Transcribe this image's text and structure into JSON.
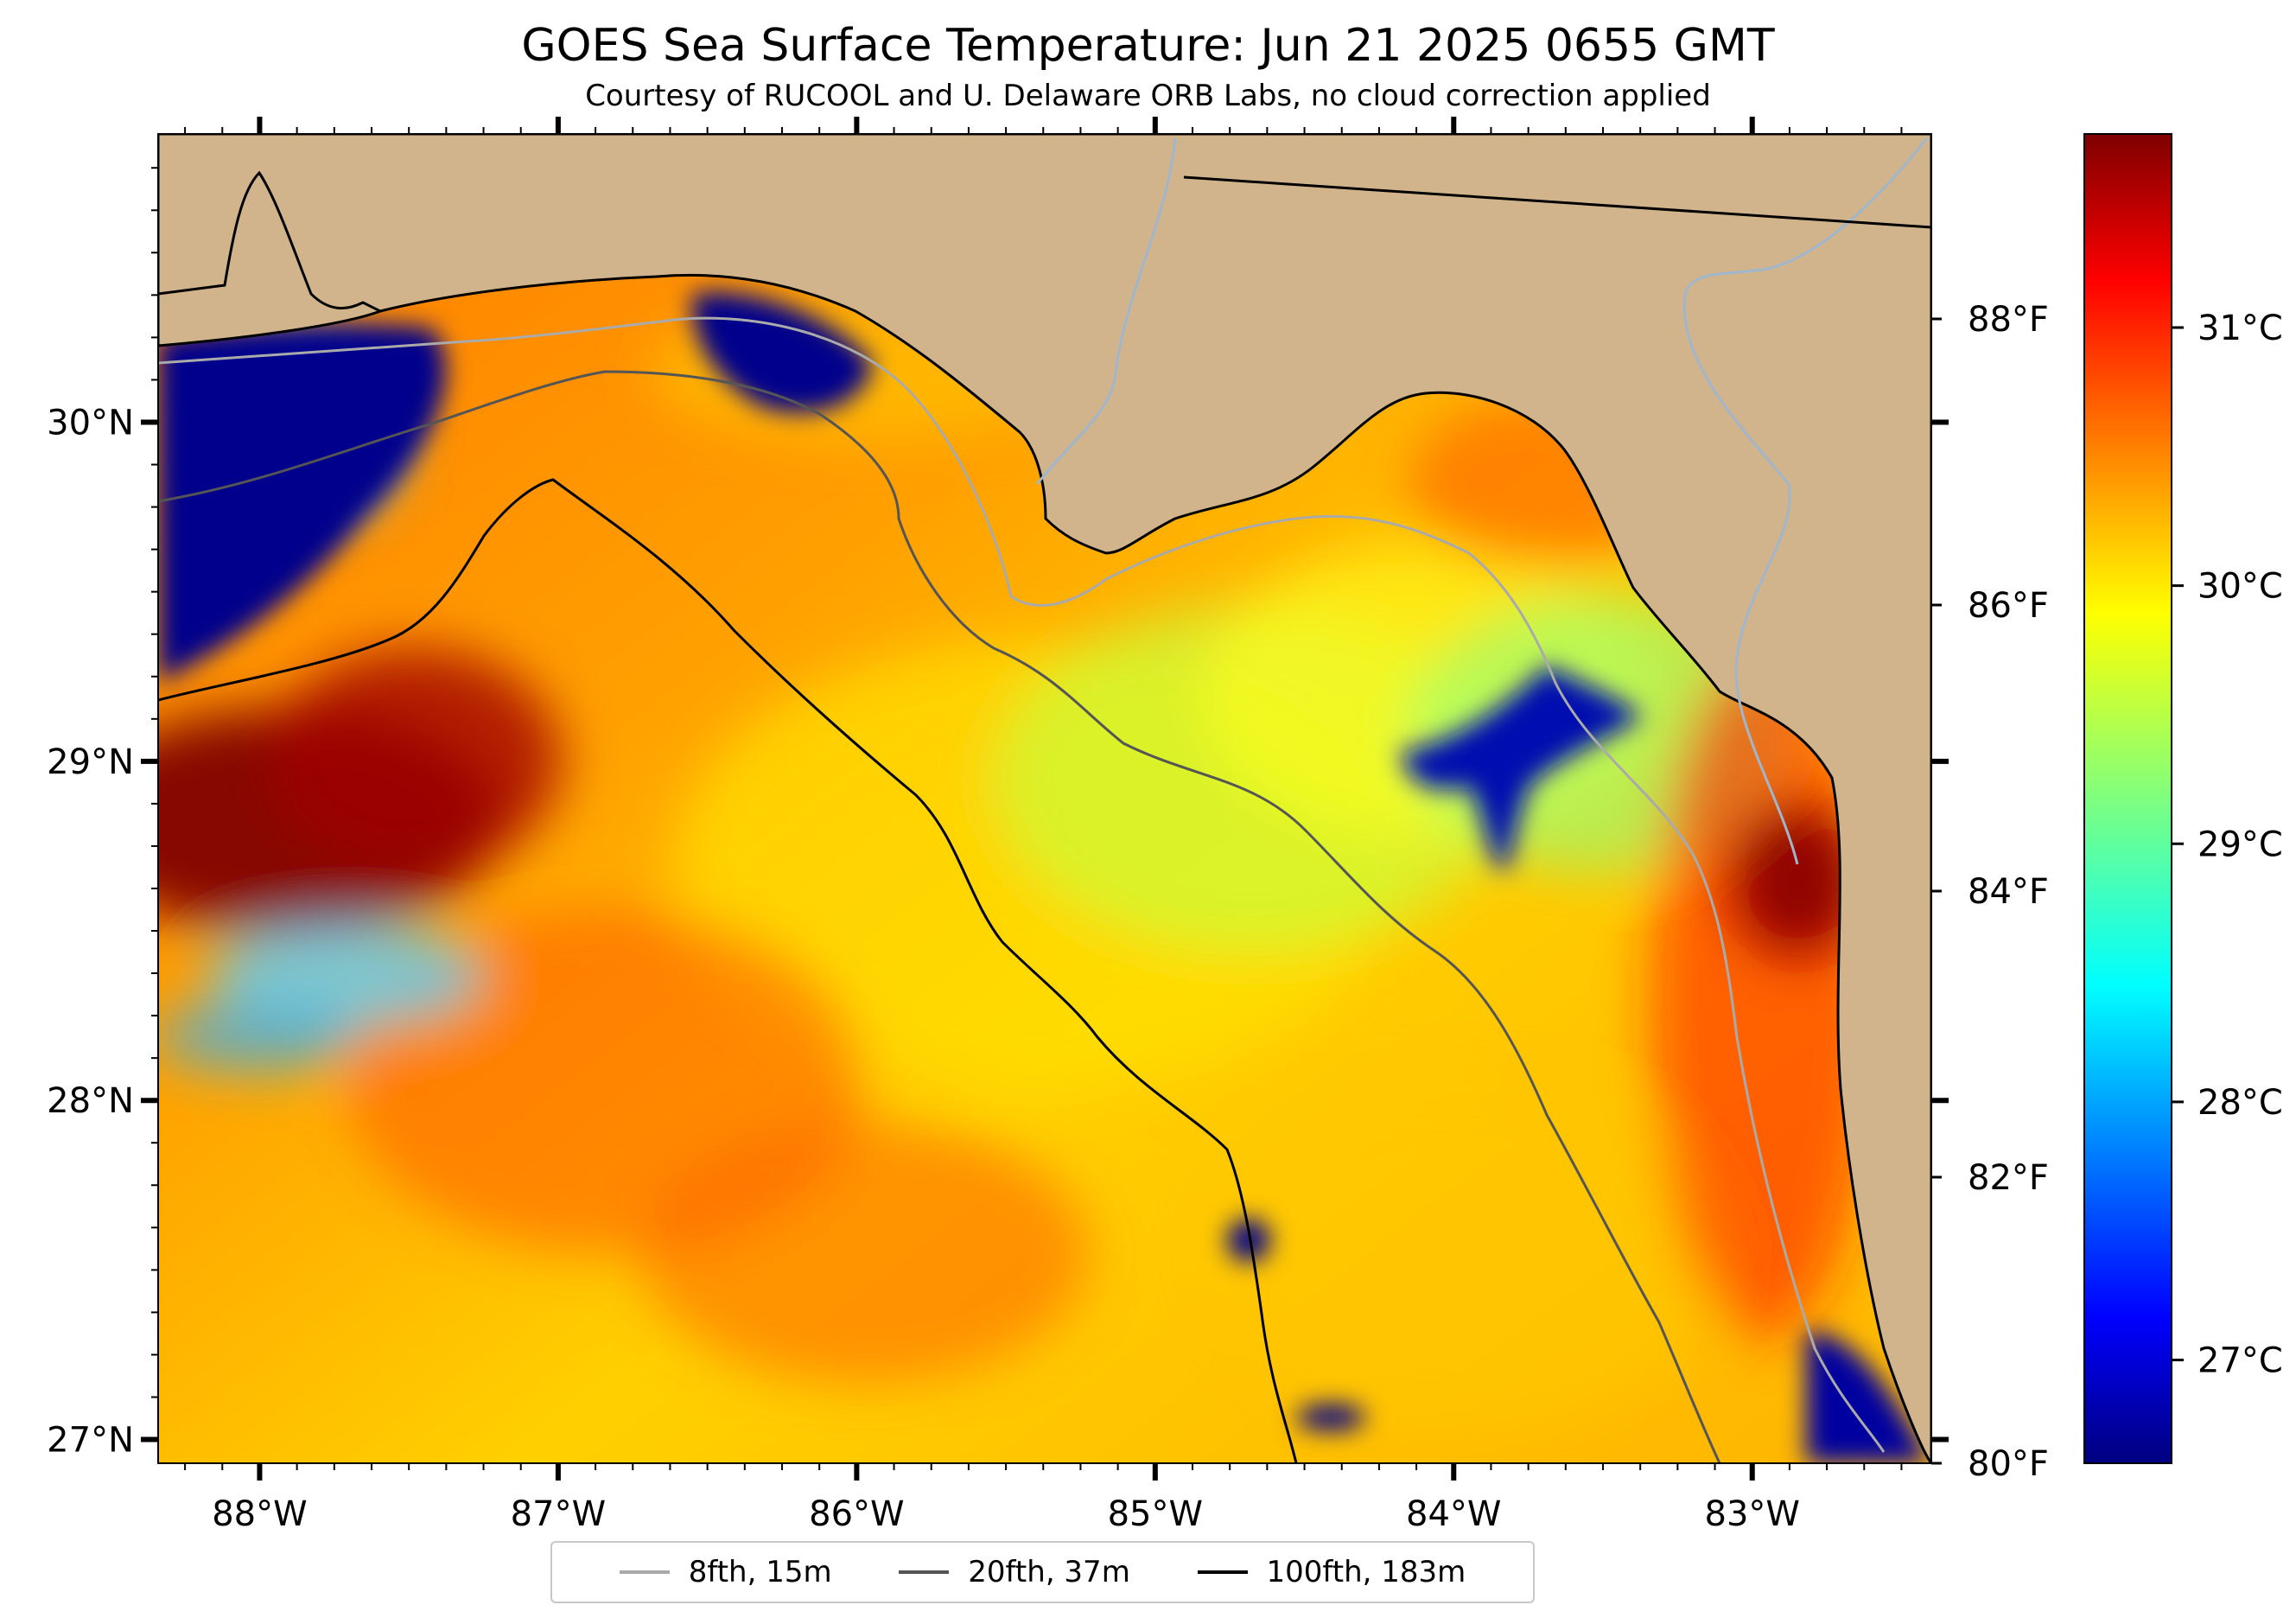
{
  "title": "GOES Sea Surface Temperature: Jun 21 2025 0655 GMT",
  "subtitle": "Courtesy of RUCOOL and U. Delaware ORB Labs, no cloud correction applied",
  "map": {
    "lon_range": [
      -88.34,
      -82.4
    ],
    "lat_range": [
      26.93,
      30.85
    ],
    "lon_ticks": [
      {
        "value": -88,
        "label": "88°W"
      },
      {
        "value": -87,
        "label": "87°W"
      },
      {
        "value": -86,
        "label": "86°W"
      },
      {
        "value": -85,
        "label": "85°W"
      },
      {
        "value": -84,
        "label": "84°W"
      },
      {
        "value": -83,
        "label": "83°W"
      }
    ],
    "lat_ticks": [
      {
        "value": 30,
        "label": "30°N"
      },
      {
        "value": 29,
        "label": "29°N"
      },
      {
        "value": 28,
        "label": "28°N"
      },
      {
        "value": 27,
        "label": "27°N"
      }
    ],
    "fahrenheit_ticks": [
      {
        "value": 88,
        "label": "88°F"
      },
      {
        "value": 86,
        "label": "86°F"
      },
      {
        "value": 84,
        "label": "84°F"
      },
      {
        "value": 82,
        "label": "82°F"
      },
      {
        "value": 80,
        "label": "80°F"
      }
    ],
    "colors": {
      "land": "#d2b48c",
      "coast": "#000000",
      "river": "#9fb6cd",
      "nodata": "#ffffff"
    }
  },
  "colorbar": {
    "cmap": "jet",
    "range_c": [
      26.6,
      31.75
    ],
    "ticks": [
      {
        "value": 31,
        "label": "31°C"
      },
      {
        "value": 30,
        "label": "30°C"
      },
      {
        "value": 29,
        "label": "29°C"
      },
      {
        "value": 28,
        "label": "28°C"
      },
      {
        "value": 27,
        "label": "27°C"
      }
    ]
  },
  "legend": {
    "placement": "bottom-center",
    "items": [
      {
        "label": "8fth, 15m",
        "color": "#aaaaaa"
      },
      {
        "label": "20fth, 37m",
        "color": "#555555"
      },
      {
        "label": "100fth, 183m",
        "color": "#000000"
      }
    ]
  }
}
